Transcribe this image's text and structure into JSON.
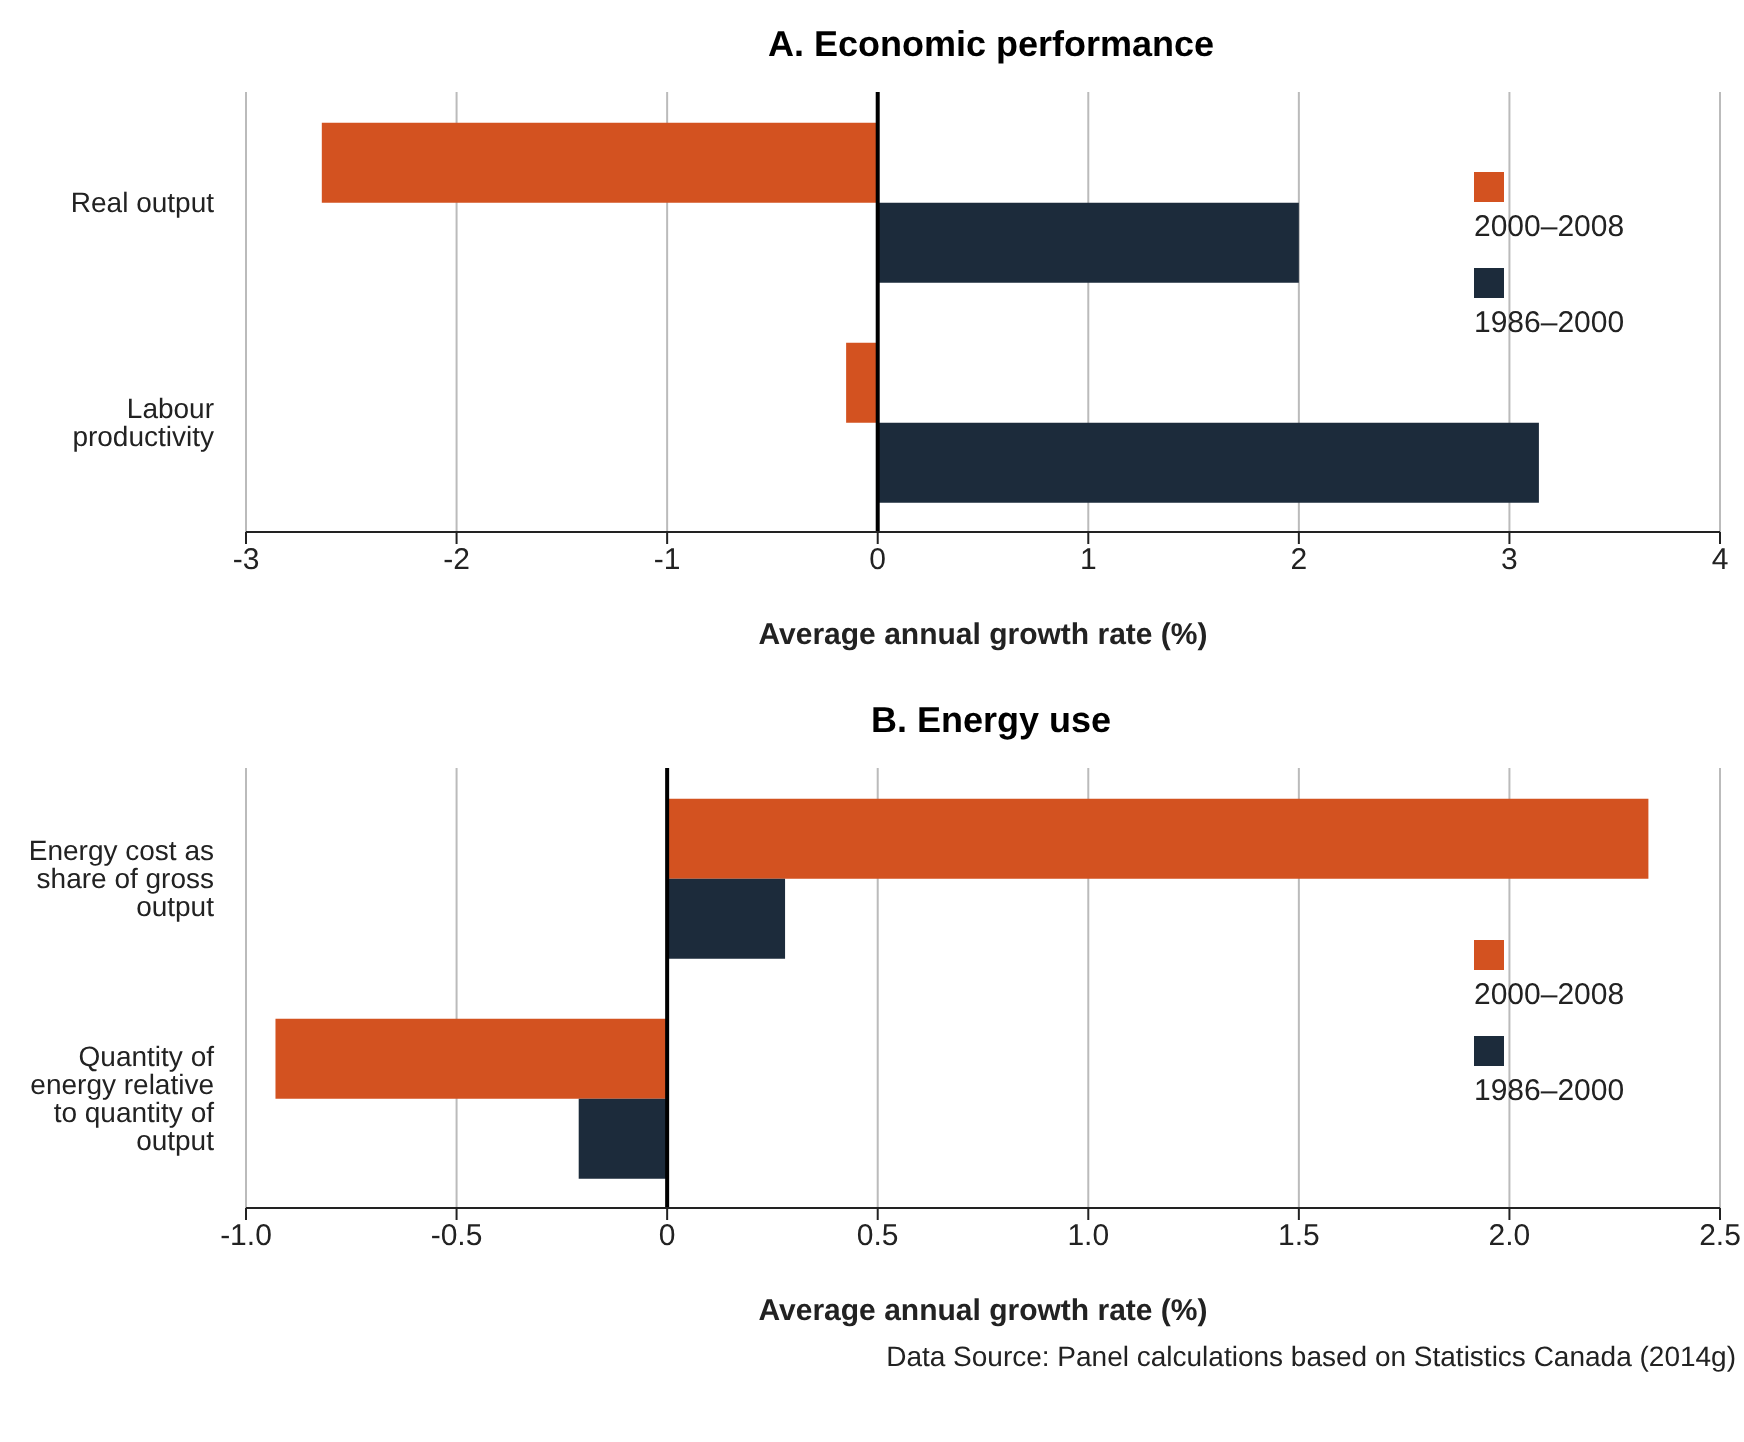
{
  "chart_data": [
    {
      "type": "bar",
      "orientation": "horizontal",
      "title": "A. Economic performance",
      "xlabel": "Average annual growth rate (%)",
      "categories": [
        "Real output",
        "Labour productivity"
      ],
      "series": [
        {
          "name": "2000–2008",
          "color": "#d35220",
          "values": [
            -2.64,
            -0.15
          ]
        },
        {
          "name": "1986–2000",
          "color": "#1c2b3b",
          "values": [
            2.0,
            3.14
          ]
        }
      ],
      "xlim": [
        -3,
        4
      ],
      "xticks": [
        -3,
        -2,
        -1,
        0,
        1,
        2,
        3,
        4
      ],
      "grid": "x",
      "legend": "right",
      "ref_lines": [
        {
          "axis": "x",
          "value": 0,
          "color": "#000000"
        }
      ]
    },
    {
      "type": "bar",
      "orientation": "horizontal",
      "title": "B. Energy use",
      "xlabel": "Average annual growth rate (%)",
      "categories": [
        "Energy cost as share of gross output",
        "Quantity of energy relative to quantity of output"
      ],
      "series": [
        {
          "name": "2000–2008",
          "color": "#d35220",
          "values": [
            2.33,
            -0.93
          ]
        },
        {
          "name": "1986–2000",
          "color": "#1c2b3b",
          "values": [
            0.28,
            -0.21
          ]
        }
      ],
      "xlim": [
        -1,
        2.5
      ],
      "xticks": [
        {
          "value": -1,
          "label": "-1.0"
        },
        -0.5,
        0,
        0.5,
        {
          "value": 1,
          "label": "1.0"
        },
        1.5,
        {
          "value": 2,
          "label": "2.0"
        },
        2.5
      ],
      "grid": "x",
      "legend": "right",
      "ref_lines": [
        {
          "axis": "x",
          "value": 0,
          "color": "#000000"
        }
      ],
      "annotations": [
        "Data Source: Panel calculations based on Statistics Canada (2014g)"
      ]
    }
  ]
}
